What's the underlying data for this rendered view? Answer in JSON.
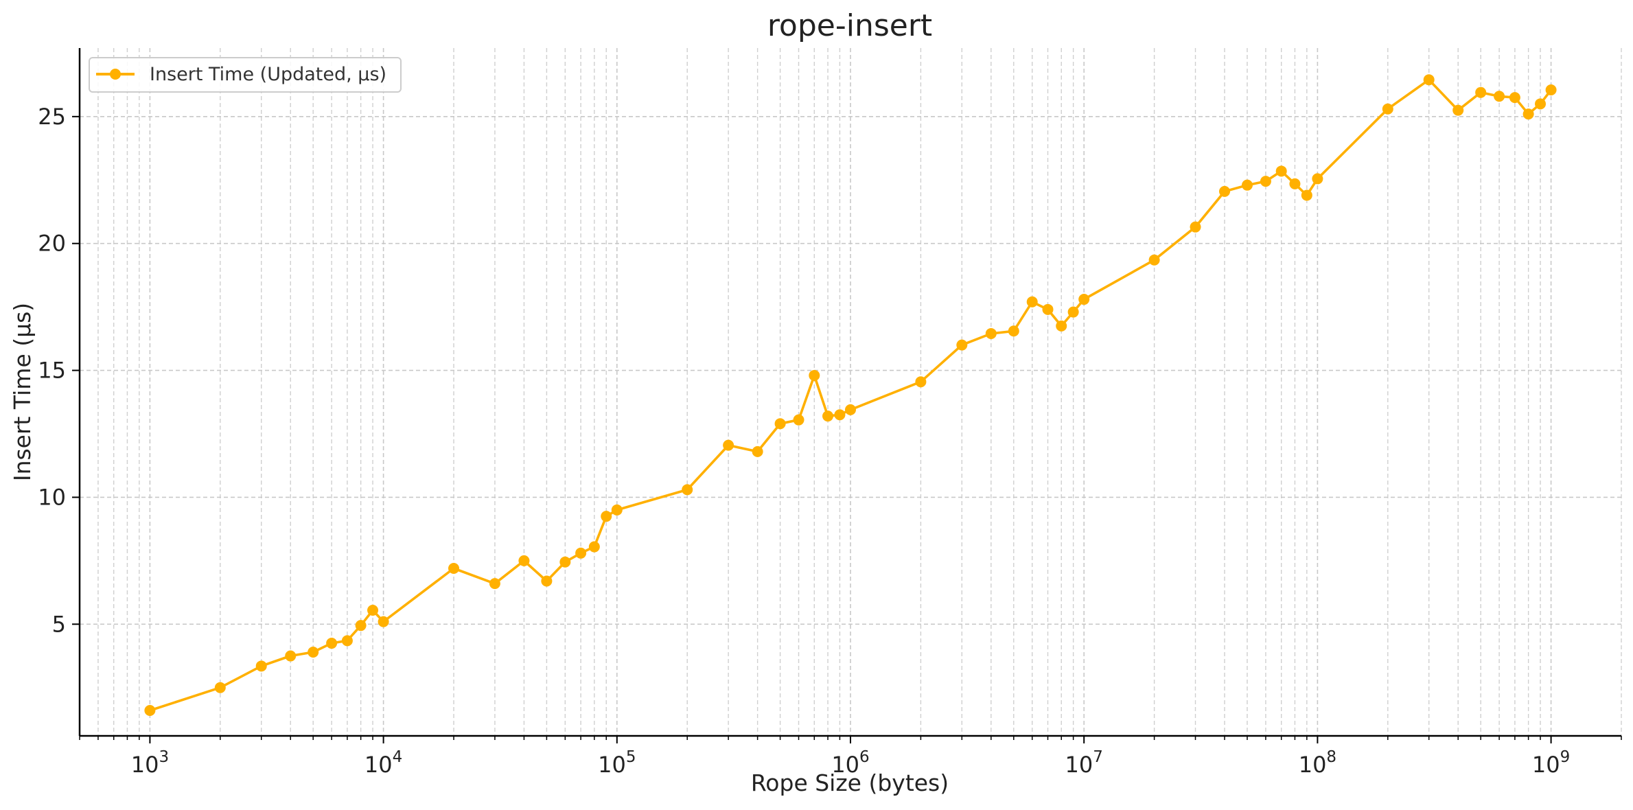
{
  "chart_data": {
    "type": "line",
    "title": "rope-insert",
    "xlabel": "Rope Size (bytes)",
    "ylabel": "Insert Time (µs)",
    "x_scale": "log",
    "xlim": [
      500,
      2000000000
    ],
    "ylim": [
      0.6,
      27.7
    ],
    "x_major_ticks": [
      {
        "value": 1000,
        "base": "10",
        "exp": "3"
      },
      {
        "value": 10000,
        "base": "10",
        "exp": "4"
      },
      {
        "value": 100000,
        "base": "10",
        "exp": "5"
      },
      {
        "value": 1000000,
        "base": "10",
        "exp": "6"
      },
      {
        "value": 10000000,
        "base": "10",
        "exp": "7"
      },
      {
        "value": 100000000,
        "base": "10",
        "exp": "8"
      },
      {
        "value": 1000000000,
        "base": "10",
        "exp": "9"
      }
    ],
    "y_ticks": [
      5,
      10,
      15,
      20,
      25
    ],
    "grid": true,
    "legend_position": "top-left",
    "series": [
      {
        "name": "Insert Time (Updated, µs)",
        "color": "#FFB000",
        "marker": "circle",
        "x": [
          1000,
          2000,
          3000,
          4000,
          5000,
          6000,
          7000,
          8000,
          9000,
          10000,
          20000,
          30000,
          40000,
          50000,
          60000,
          70000,
          80000,
          90000,
          100000,
          200000,
          300000,
          400000,
          500000,
          600000,
          700000,
          800000,
          900000,
          1000000,
          2000000,
          3000000,
          4000000,
          5000000,
          6000000,
          7000000,
          8000000,
          9000000,
          10000000,
          20000000,
          30000000,
          40000000,
          50000000,
          60000000,
          70000000,
          80000000,
          90000000,
          100000000,
          200000000,
          300000000,
          400000000,
          500000000,
          600000000,
          700000000,
          800000000,
          900000000,
          1000000000
        ],
        "y": [
          1.6,
          2.5,
          3.35,
          3.75,
          3.9,
          4.25,
          4.35,
          4.95,
          5.55,
          5.1,
          7.2,
          6.6,
          7.5,
          6.7,
          7.45,
          7.8,
          8.05,
          9.25,
          9.5,
          10.3,
          12.05,
          11.8,
          12.9,
          13.05,
          14.8,
          13.2,
          13.25,
          13.45,
          14.55,
          16.0,
          16.45,
          16.55,
          17.7,
          17.4,
          16.75,
          17.3,
          17.8,
          19.35,
          20.65,
          22.05,
          22.3,
          22.45,
          22.85,
          22.35,
          21.9,
          22.55,
          25.3,
          26.45,
          25.25,
          25.95,
          25.8,
          25.75,
          25.1,
          25.5,
          26.05
        ]
      }
    ]
  }
}
